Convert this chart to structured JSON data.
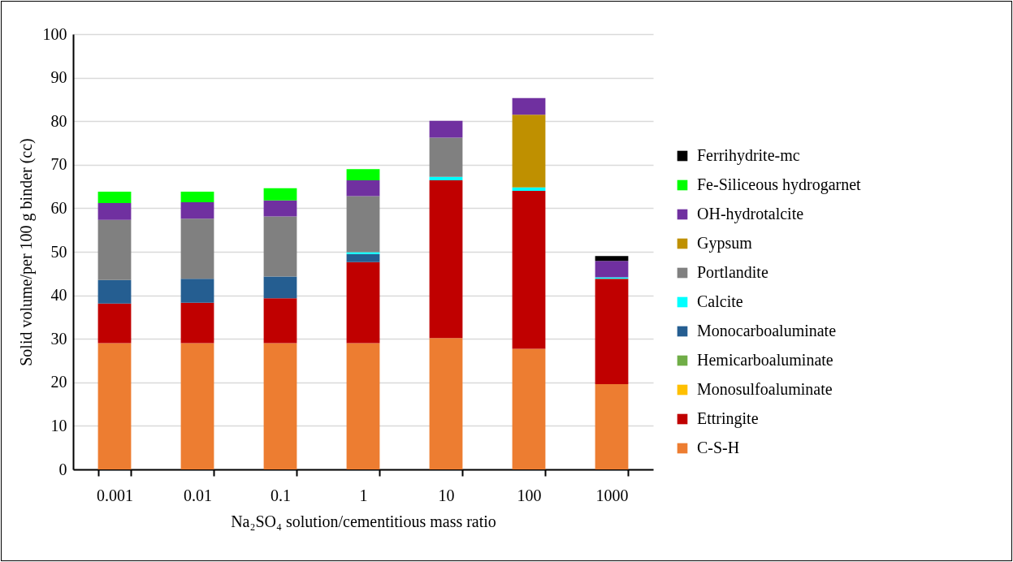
{
  "chart_data": {
    "type": "bar",
    "stacked": true,
    "xlabel": "Na₂SO₄ solution/cementitious mass ratio",
    "ylabel": "Solid volume/per 100 g binder (cc)",
    "categories": [
      "0.001",
      "0.01",
      "0.1",
      "1",
      "10",
      "100",
      "1000"
    ],
    "series": [
      {
        "name": "C-S-H",
        "color": "#ed7d31",
        "values": [
          29,
          29,
          29,
          29,
          30.2,
          27.7,
          19.6
        ]
      },
      {
        "name": "Ettringite",
        "color": "#c00000",
        "values": [
          9.1,
          9.3,
          10.3,
          18.6,
          36.2,
          36.3,
          24.2
        ]
      },
      {
        "name": "Monosulfoaluminate",
        "color": "#ffc000",
        "values": [
          0,
          0,
          0,
          0,
          0,
          0,
          0
        ]
      },
      {
        "name": "Hemicarboaluminate",
        "color": "#70ad47",
        "values": [
          0,
          0,
          0,
          0,
          0,
          0,
          0
        ]
      },
      {
        "name": "Monocarboaluminate",
        "color": "#255e91",
        "values": [
          5.4,
          5.5,
          5.0,
          1.9,
          0,
          0,
          0
        ]
      },
      {
        "name": "Calcite",
        "color": "#00ffff",
        "values": [
          0,
          0,
          0,
          0.4,
          0.8,
          0.8,
          0.3
        ]
      },
      {
        "name": "Portlandite",
        "color": "#808080",
        "values": [
          13.8,
          13.8,
          13.8,
          12.9,
          9.0,
          0,
          0
        ]
      },
      {
        "name": "Gypsum",
        "color": "#bf9000",
        "values": [
          0,
          0,
          0,
          0,
          0,
          16.7,
          0
        ]
      },
      {
        "name": "OH-hydrotalcite",
        "color": "#7030a0",
        "values": [
          3.9,
          3.8,
          3.7,
          3.6,
          3.9,
          3.8,
          3.8
        ]
      },
      {
        "name": "Fe-Siliceous hydrogarnet",
        "color": "#00ff00",
        "values": [
          2.6,
          2.4,
          2.8,
          2.6,
          0,
          0,
          0
        ]
      },
      {
        "name": "Ferrihydrite-mc",
        "color": "#000000",
        "values": [
          0,
          0,
          0,
          0,
          0,
          0,
          1.1
        ]
      }
    ],
    "ylim": [
      0,
      100
    ],
    "yticks": [
      0,
      10,
      20,
      30,
      40,
      50,
      60,
      70,
      80,
      90,
      100
    ],
    "grid": "y",
    "legend": "right"
  }
}
